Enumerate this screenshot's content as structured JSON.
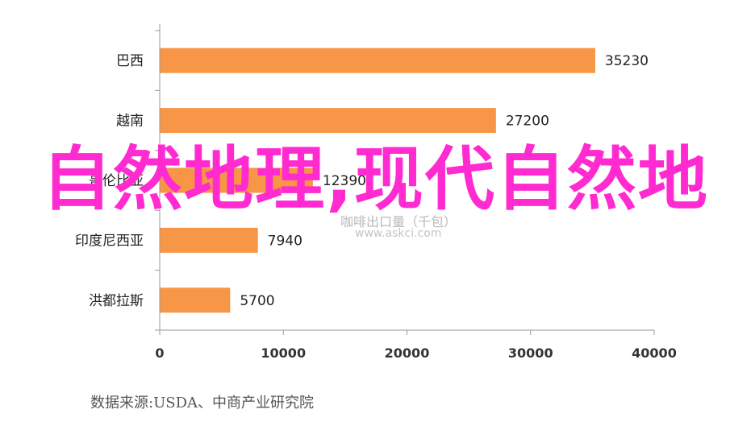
{
  "chart_data": {
    "type": "bar",
    "orientation": "horizontal",
    "categories": [
      "巴西",
      "越南",
      "哥伦比亚",
      "印度尼西亚",
      "洪都拉斯"
    ],
    "values": [
      35230,
      27200,
      12390,
      7940,
      5700
    ],
    "value_labels": [
      "35230",
      "27200",
      "12390",
      "7940",
      "5700"
    ],
    "xlim": [
      0,
      40000
    ],
    "xticks": [
      "0",
      "10000",
      "20000",
      "30000",
      "40000"
    ],
    "bar_color": "#f79646",
    "grid": false,
    "legend": "none",
    "title": "",
    "xlabel": "",
    "ylabel": ""
  },
  "overlay_title": "自然地理,现代自然地",
  "source_note": "数据来源:USDA、中商产业研究院",
  "watermark": {
    "line1": "咖啡出口量（千包）",
    "line2": "www.askci.com"
  }
}
